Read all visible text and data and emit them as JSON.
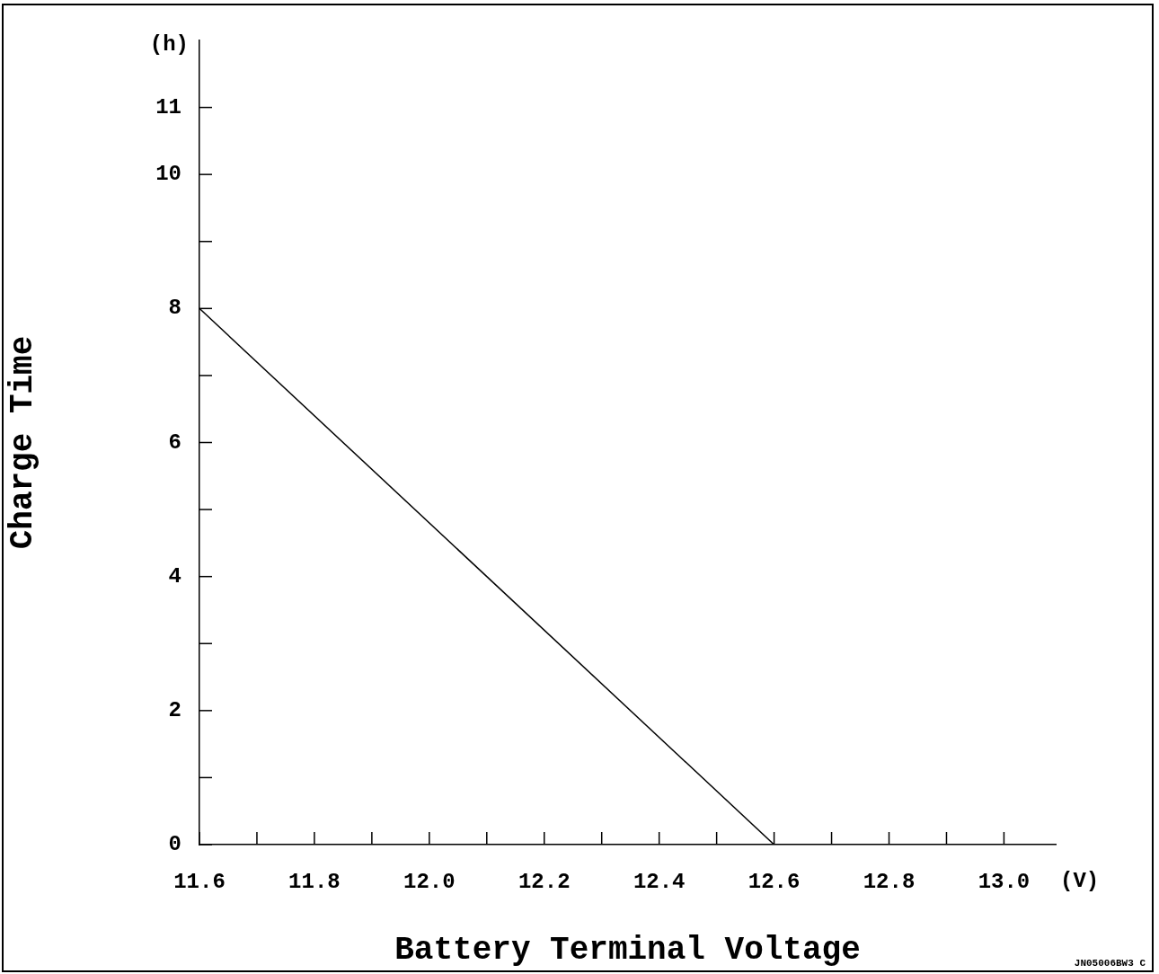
{
  "chart_data": {
    "type": "line",
    "xlabel": "Battery Terminal Voltage",
    "ylabel": "Charge Time",
    "annotations": [
      "(h)",
      "(V)",
      "JN05006BW3 C"
    ],
    "x": [
      11.6,
      12.6
    ],
    "series": [
      {
        "color": "#000000",
        "values": [
          8,
          0
        ]
      }
    ],
    "xlim": [
      11.6,
      13.09
    ],
    "xticks": [
      11.6,
      {
        "value": 11.7,
        "label": null
      },
      11.8,
      {
        "value": 11.9,
        "label": null
      },
      {
        "value": 12.0,
        "label": "12.0"
      },
      {
        "value": 12.1,
        "label": null
      },
      12.2,
      {
        "value": 12.3,
        "label": null
      },
      12.4,
      {
        "value": 12.5,
        "label": null
      },
      12.6,
      {
        "value": 12.7,
        "label": null
      },
      12.8,
      {
        "value": 12.9,
        "label": null
      },
      {
        "value": 13.0,
        "label": "13.0"
      }
    ],
    "ylim": [
      0,
      12
    ],
    "yticks": [
      0,
      {
        "value": 1,
        "label": null
      },
      2,
      {
        "value": 3,
        "label": null
      },
      4,
      {
        "value": 5,
        "label": null
      },
      6,
      {
        "value": 7,
        "label": null
      },
      8,
      {
        "value": 9,
        "label": null
      },
      10,
      11
    ],
    "grid": false,
    "legend": false,
    "marker": "none",
    "line_style": "solid"
  }
}
